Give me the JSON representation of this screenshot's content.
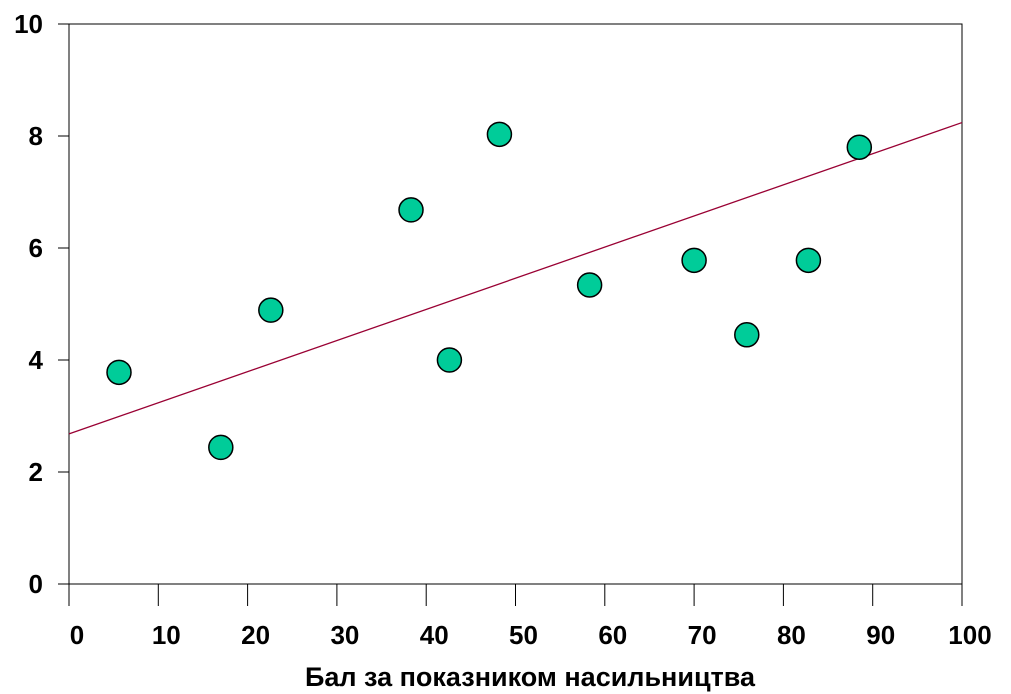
{
  "chart_data": {
    "type": "scatter",
    "title": "",
    "xlabel": "Бал за показником насильництва",
    "ylabel": "",
    "xlim": [
      0,
      100
    ],
    "ylim": [
      0,
      10
    ],
    "x_ticks": [
      {
        "value": 0,
        "label": "0"
      },
      {
        "value": 10,
        "label": "10"
      },
      {
        "value": 20,
        "label": "20"
      },
      {
        "value": 30,
        "label": "30"
      },
      {
        "value": 40,
        "label": "40"
      },
      {
        "value": 50,
        "label": "50"
      },
      {
        "value": 60,
        "label": "60"
      },
      {
        "value": 70,
        "label": "70"
      },
      {
        "value": 80,
        "label": "80"
      },
      {
        "value": 90,
        "label": "90"
      },
      {
        "value": 100,
        "label": "100"
      }
    ],
    "y_ticks": [
      {
        "value": 0,
        "label": "0"
      },
      {
        "value": 2,
        "label": "2"
      },
      {
        "value": 4,
        "label": "4"
      },
      {
        "value": 6,
        "label": "6"
      },
      {
        "value": 8,
        "label": "8"
      },
      {
        "value": 10,
        "label": "10"
      }
    ],
    "points": [
      {
        "x": 5.6,
        "y": 3.78
      },
      {
        "x": 17.0,
        "y": 2.44
      },
      {
        "x": 22.6,
        "y": 4.89
      },
      {
        "x": 38.3,
        "y": 6.68
      },
      {
        "x": 42.6,
        "y": 4.0
      },
      {
        "x": 48.2,
        "y": 8.03
      },
      {
        "x": 58.3,
        "y": 5.34
      },
      {
        "x": 70.0,
        "y": 5.78
      },
      {
        "x": 75.9,
        "y": 4.45
      },
      {
        "x": 82.8,
        "y": 5.78
      },
      {
        "x": 88.5,
        "y": 7.8
      }
    ],
    "trend_line": {
      "x": [
        0,
        100
      ],
      "y": [
        2.68,
        8.24
      ]
    },
    "grid": false,
    "legend": "none",
    "colors": {
      "marker_fill": "#00CC99",
      "marker_edge": "#000000",
      "trend_line": "#990033",
      "axes": "#000000"
    }
  }
}
